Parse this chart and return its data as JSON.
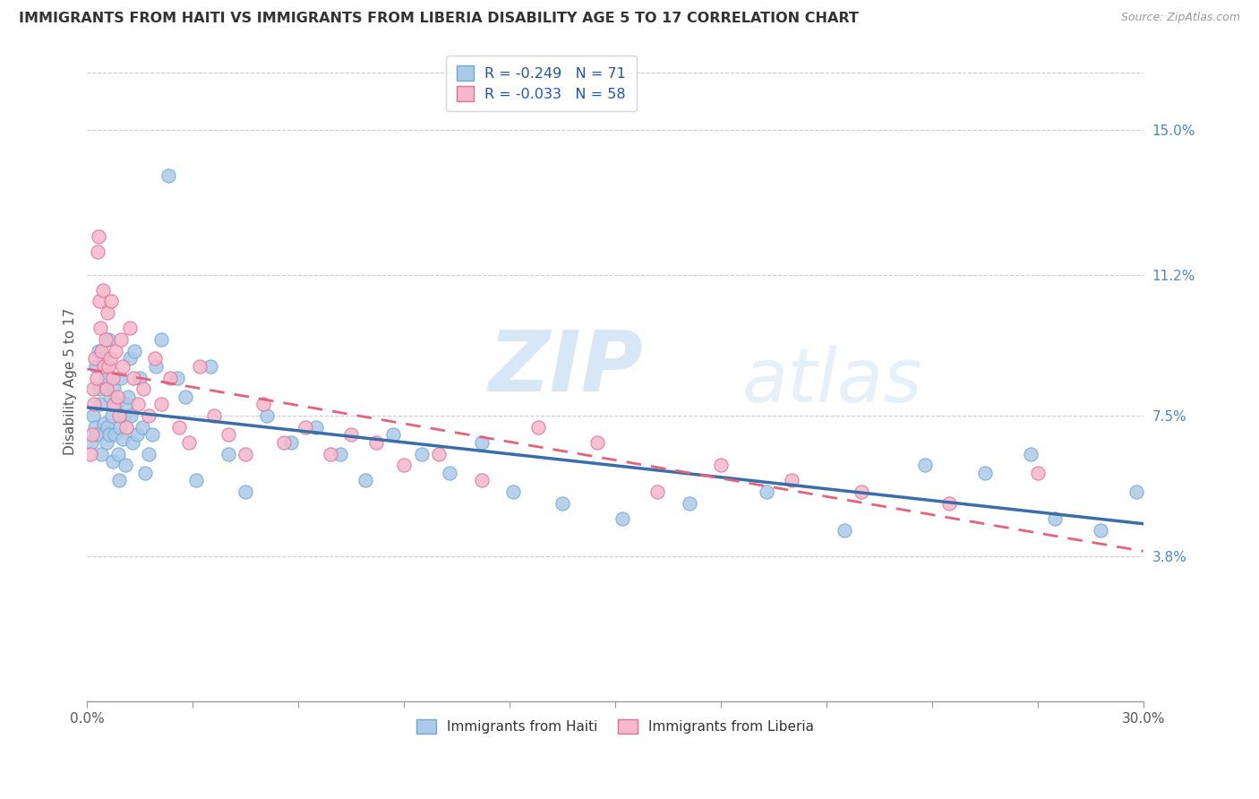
{
  "title": "IMMIGRANTS FROM HAITI VS IMMIGRANTS FROM LIBERIA DISABILITY AGE 5 TO 17 CORRELATION CHART",
  "source": "Source: ZipAtlas.com",
  "ylabel_right_ticks": [
    3.8,
    7.5,
    11.2,
    15.0
  ],
  "ylabel_label": "Disability Age 5 to 17",
  "xmin": 0.0,
  "xmax": 30.0,
  "ymin": 0.0,
  "ymax": 16.8,
  "haiti_color": "#adc9e8",
  "haiti_edge_color": "#6aaad4",
  "liberia_color": "#f5b8cc",
  "liberia_edge_color": "#e07090",
  "haiti_line_color": "#3a6eaa",
  "liberia_line_color": "#e8607a",
  "haiti_R": -0.249,
  "haiti_N": 71,
  "liberia_R": -0.033,
  "liberia_N": 58,
  "watermark": "ZIPatlas",
  "haiti_x": [
    0.13,
    0.18,
    0.22,
    0.25,
    0.28,
    0.31,
    0.34,
    0.38,
    0.41,
    0.45,
    0.48,
    0.52,
    0.55,
    0.58,
    0.6,
    0.63,
    0.66,
    0.7,
    0.73,
    0.76,
    0.79,
    0.83,
    0.87,
    0.9,
    0.94,
    0.97,
    1.01,
    1.05,
    1.08,
    1.12,
    1.15,
    1.2,
    1.25,
    1.3,
    1.35,
    1.42,
    1.5,
    1.58,
    1.65,
    1.75,
    1.85,
    1.95,
    2.1,
    2.3,
    2.55,
    2.8,
    3.1,
    3.5,
    4.0,
    4.5,
    5.1,
    5.8,
    6.5,
    7.2,
    7.9,
    8.7,
    9.5,
    10.3,
    11.2,
    12.1,
    13.5,
    15.2,
    17.1,
    19.3,
    21.5,
    23.8,
    25.5,
    26.8,
    27.5,
    28.8,
    29.8
  ],
  "haiti_y": [
    6.8,
    7.5,
    7.2,
    8.8,
    7.0,
    9.2,
    8.2,
    7.8,
    6.5,
    9.0,
    7.3,
    8.5,
    6.8,
    7.2,
    9.5,
    7.0,
    8.0,
    7.5,
    6.3,
    8.2,
    7.0,
    7.8,
    6.5,
    5.8,
    7.2,
    8.5,
    6.9,
    7.5,
    6.2,
    7.8,
    8.0,
    9.0,
    7.5,
    6.8,
    9.2,
    7.0,
    8.5,
    7.2,
    6.0,
    6.5,
    7.0,
    8.8,
    9.5,
    13.8,
    8.5,
    8.0,
    5.8,
    8.8,
    6.5,
    5.5,
    7.5,
    6.8,
    7.2,
    6.5,
    5.8,
    7.0,
    6.5,
    6.0,
    6.8,
    5.5,
    5.2,
    4.8,
    5.2,
    5.5,
    4.5,
    6.2,
    6.0,
    6.5,
    4.8,
    4.5,
    5.5
  ],
  "liberia_x": [
    0.1,
    0.14,
    0.17,
    0.2,
    0.23,
    0.26,
    0.29,
    0.32,
    0.35,
    0.38,
    0.41,
    0.44,
    0.48,
    0.52,
    0.55,
    0.58,
    0.61,
    0.64,
    0.68,
    0.72,
    0.76,
    0.8,
    0.85,
    0.9,
    0.96,
    1.02,
    1.1,
    1.2,
    1.32,
    1.45,
    1.6,
    1.75,
    1.92,
    2.1,
    2.35,
    2.6,
    2.9,
    3.2,
    3.6,
    4.0,
    4.5,
    5.0,
    5.6,
    6.2,
    6.9,
    7.5,
    8.2,
    9.0,
    10.0,
    11.2,
    12.8,
    14.5,
    16.2,
    18.0,
    20.0,
    22.0,
    24.5,
    27.0
  ],
  "liberia_y": [
    6.5,
    7.0,
    8.2,
    7.8,
    9.0,
    8.5,
    11.8,
    12.2,
    10.5,
    9.8,
    9.2,
    10.8,
    8.8,
    9.5,
    8.2,
    10.2,
    8.8,
    9.0,
    10.5,
    8.5,
    7.8,
    9.2,
    8.0,
    7.5,
    9.5,
    8.8,
    7.2,
    9.8,
    8.5,
    7.8,
    8.2,
    7.5,
    9.0,
    7.8,
    8.5,
    7.2,
    6.8,
    8.8,
    7.5,
    7.0,
    6.5,
    7.8,
    6.8,
    7.2,
    6.5,
    7.0,
    6.8,
    6.2,
    6.5,
    5.8,
    7.2,
    6.8,
    5.5,
    6.2,
    5.8,
    5.5,
    5.2,
    6.0
  ]
}
